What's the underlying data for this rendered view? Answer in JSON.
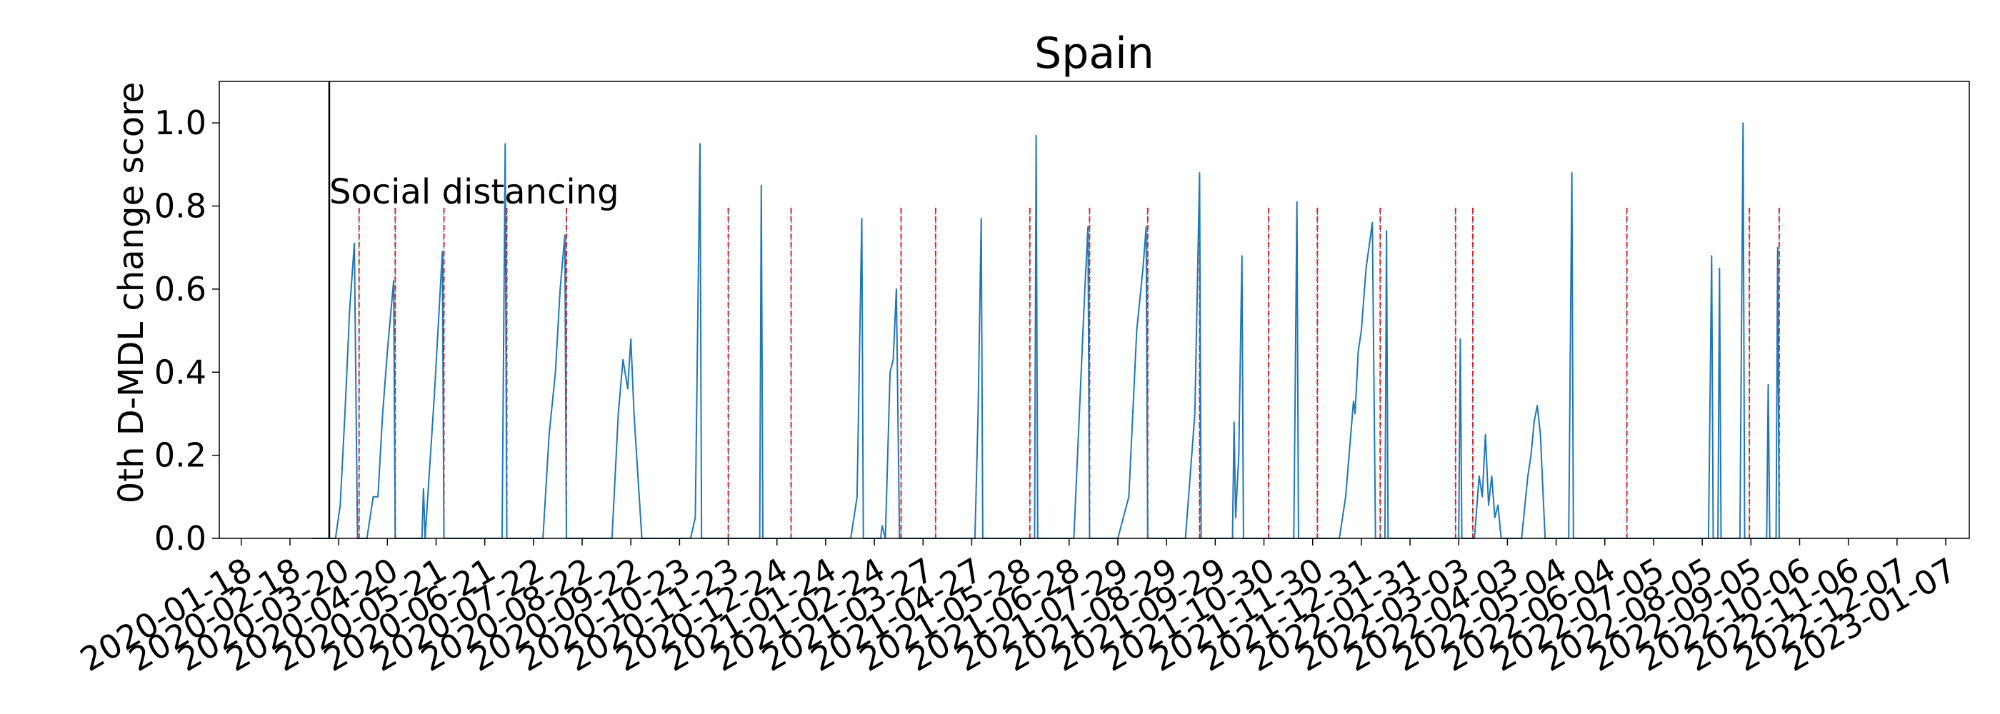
{
  "chart_data": {
    "type": "line",
    "title": "Spain",
    "ylabel": "0th D-MDL change score",
    "xlabel": "",
    "xlim": [
      "2020-01-04",
      "2023-01-22"
    ],
    "ylim": [
      0,
      1.1
    ],
    "yticks": [
      0.0,
      0.2,
      0.4,
      0.6,
      0.8,
      1.0
    ],
    "ytick_labels": [
      "0.0",
      "0.2",
      "0.4",
      "0.6",
      "0.8",
      "1.0"
    ],
    "xticks": [
      "2020-01-18",
      "2020-02-18",
      "2020-03-20",
      "2020-04-20",
      "2020-05-21",
      "2020-06-21",
      "2020-07-22",
      "2020-08-22",
      "2020-09-22",
      "2020-10-23",
      "2020-11-23",
      "2020-12-24",
      "2021-01-24",
      "2021-02-24",
      "2021-03-27",
      "2021-04-27",
      "2021-05-28",
      "2021-06-28",
      "2021-07-29",
      "2021-08-29",
      "2021-09-29",
      "2021-10-30",
      "2021-11-30",
      "2021-12-31",
      "2022-01-31",
      "2022-03-03",
      "2022-04-03",
      "2022-05-04",
      "2022-06-04",
      "2022-07-05",
      "2022-08-05",
      "2022-09-05",
      "2022-10-06",
      "2022-11-06",
      "2022-12-07",
      "2023-01-07"
    ],
    "grid": false,
    "event_line": {
      "date": "2020-03-14",
      "label": "Social distancing",
      "color": "#000000"
    },
    "alarm_dates": [
      "2020-04-02",
      "2020-04-25",
      "2020-05-26",
      "2020-07-05",
      "2020-08-12",
      "2020-11-23",
      "2021-01-02",
      "2021-03-13",
      "2021-04-04",
      "2021-06-03",
      "2021-07-11",
      "2021-08-17",
      "2021-09-19",
      "2021-11-02",
      "2021-12-03",
      "2022-01-12",
      "2022-03-01",
      "2022-03-12",
      "2022-06-18",
      "2022-09-04",
      "2022-09-23"
    ],
    "alarm_color": "#d62728",
    "series": [
      {
        "color": "#1f77b4",
        "points": [
          [
            "2020-03-03",
            0.0
          ],
          [
            "2020-03-18",
            0.0
          ],
          [
            "2020-03-21",
            0.08
          ],
          [
            "2020-03-24",
            0.3
          ],
          [
            "2020-03-27",
            0.55
          ],
          [
            "2020-03-30",
            0.71
          ],
          [
            "2020-04-01",
            0.0
          ],
          [
            "2020-04-07",
            0.0
          ],
          [
            "2020-04-11",
            0.1
          ],
          [
            "2020-04-14",
            0.1
          ],
          [
            "2020-04-17",
            0.3
          ],
          [
            "2020-04-20",
            0.45
          ],
          [
            "2020-04-24",
            0.62
          ],
          [
            "2020-04-25",
            0.0
          ],
          [
            "2020-05-12",
            0.0
          ],
          [
            "2020-05-13",
            0.12
          ],
          [
            "2020-05-14",
            0.0
          ],
          [
            "2020-05-20",
            0.35
          ],
          [
            "2020-05-25",
            0.69
          ],
          [
            "2020-05-26",
            0.0
          ],
          [
            "2020-07-02",
            0.0
          ],
          [
            "2020-07-04",
            0.95
          ],
          [
            "2020-07-05",
            0.0
          ],
          [
            "2020-07-28",
            0.0
          ],
          [
            "2020-08-01",
            0.25
          ],
          [
            "2020-08-05",
            0.4
          ],
          [
            "2020-08-08",
            0.6
          ],
          [
            "2020-08-11",
            0.73
          ],
          [
            "2020-08-12",
            0.0
          ],
          [
            "2020-09-10",
            0.0
          ],
          [
            "2020-09-14",
            0.3
          ],
          [
            "2020-09-17",
            0.43
          ],
          [
            "2020-09-20",
            0.36
          ],
          [
            "2020-09-22",
            0.48
          ],
          [
            "2020-09-24",
            0.3
          ],
          [
            "2020-09-29",
            0.0
          ],
          [
            "2020-10-30",
            0.0
          ],
          [
            "2020-11-02",
            0.05
          ],
          [
            "2020-11-05",
            0.95
          ],
          [
            "2020-11-06",
            0.0
          ],
          [
            "2020-12-13",
            0.0
          ],
          [
            "2020-12-14",
            0.85
          ],
          [
            "2020-12-15",
            0.0
          ],
          [
            "2021-02-09",
            0.0
          ],
          [
            "2021-02-13",
            0.1
          ],
          [
            "2021-02-16",
            0.77
          ],
          [
            "2021-02-17",
            0.0
          ],
          [
            "2021-02-28",
            0.0
          ],
          [
            "2021-03-01",
            0.03
          ],
          [
            "2021-03-03",
            0.0
          ],
          [
            "2021-03-06",
            0.4
          ],
          [
            "2021-03-08",
            0.43
          ],
          [
            "2021-03-10",
            0.6
          ],
          [
            "2021-03-12",
            0.0
          ],
          [
            "2021-04-29",
            0.0
          ],
          [
            "2021-05-01",
            0.3
          ],
          [
            "2021-05-03",
            0.77
          ],
          [
            "2021-05-04",
            0.0
          ],
          [
            "2021-06-06",
            0.0
          ],
          [
            "2021-06-07",
            0.97
          ],
          [
            "2021-06-08",
            0.0
          ],
          [
            "2021-07-01",
            0.0
          ],
          [
            "2021-07-08",
            0.6
          ],
          [
            "2021-07-10",
            0.75
          ],
          [
            "2021-07-11",
            0.0
          ],
          [
            "2021-07-29",
            0.0
          ],
          [
            "2021-08-05",
            0.1
          ],
          [
            "2021-08-10",
            0.5
          ],
          [
            "2021-08-14",
            0.65
          ],
          [
            "2021-08-16",
            0.75
          ],
          [
            "2021-08-17",
            0.0
          ],
          [
            "2021-09-10",
            0.0
          ],
          [
            "2021-09-16",
            0.3
          ],
          [
            "2021-09-19",
            0.88
          ],
          [
            "2021-09-20",
            0.0
          ],
          [
            "2021-10-10",
            0.0
          ],
          [
            "2021-10-11",
            0.28
          ],
          [
            "2021-10-12",
            0.05
          ],
          [
            "2021-10-14",
            0.2
          ],
          [
            "2021-10-16",
            0.68
          ],
          [
            "2021-10-17",
            0.0
          ],
          [
            "2021-11-18",
            0.0
          ],
          [
            "2021-11-20",
            0.81
          ],
          [
            "2021-11-21",
            0.0
          ],
          [
            "2021-12-17",
            0.0
          ],
          [
            "2021-12-21",
            0.1
          ],
          [
            "2021-12-26",
            0.33
          ],
          [
            "2021-12-27",
            0.3
          ],
          [
            "2021-12-29",
            0.45
          ],
          [
            "2021-12-31",
            0.5
          ],
          [
            "2022-01-03",
            0.65
          ],
          [
            "2022-01-07",
            0.76
          ],
          [
            "2022-01-09",
            0.0
          ],
          [
            "2022-01-15",
            0.0
          ],
          [
            "2022-01-16",
            0.74
          ],
          [
            "2022-01-17",
            0.0
          ],
          [
            "2022-03-03",
            0.0
          ],
          [
            "2022-03-04",
            0.48
          ],
          [
            "2022-03-05",
            0.0
          ],
          [
            "2022-03-13",
            0.0
          ],
          [
            "2022-03-16",
            0.15
          ],
          [
            "2022-03-18",
            0.1
          ],
          [
            "2022-03-20",
            0.25
          ],
          [
            "2022-03-22",
            0.08
          ],
          [
            "2022-03-24",
            0.15
          ],
          [
            "2022-03-26",
            0.05
          ],
          [
            "2022-03-28",
            0.08
          ],
          [
            "2022-03-30",
            0.0
          ],
          [
            "2022-04-12",
            0.0
          ],
          [
            "2022-04-16",
            0.15
          ],
          [
            "2022-04-18",
            0.2
          ],
          [
            "2022-04-20",
            0.28
          ],
          [
            "2022-04-22",
            0.32
          ],
          [
            "2022-04-24",
            0.25
          ],
          [
            "2022-04-26",
            0.08
          ],
          [
            "2022-04-27",
            0.0
          ],
          [
            "2022-05-12",
            0.0
          ],
          [
            "2022-05-14",
            0.88
          ],
          [
            "2022-05-15",
            0.0
          ],
          [
            "2022-08-09",
            0.0
          ],
          [
            "2022-08-11",
            0.68
          ],
          [
            "2022-08-12",
            0.0
          ],
          [
            "2022-08-15",
            0.0
          ],
          [
            "2022-08-16",
            0.65
          ],
          [
            "2022-08-17",
            0.0
          ],
          [
            "2022-08-29",
            0.0
          ],
          [
            "2022-08-31",
            1.0
          ],
          [
            "2022-09-01",
            0.0
          ],
          [
            "2022-09-15",
            0.0
          ],
          [
            "2022-09-16",
            0.37
          ],
          [
            "2022-09-17",
            0.0
          ],
          [
            "2022-09-21",
            0.0
          ],
          [
            "2022-09-22",
            0.7
          ],
          [
            "2022-09-23",
            0.0
          ]
        ]
      }
    ]
  }
}
